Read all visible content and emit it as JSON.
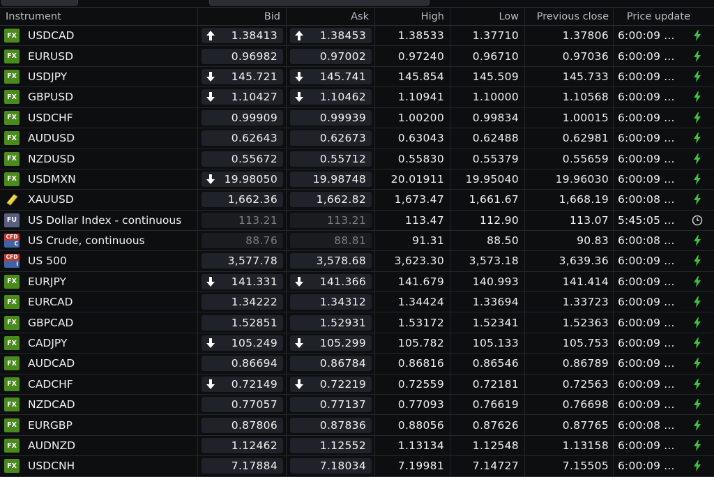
{
  "columns": {
    "instrument": "Instrument",
    "bid": "Bid",
    "ask": "Ask",
    "high": "High",
    "low": "Low",
    "prev_close": "Previous close",
    "price_update": "Price update"
  },
  "colors": {
    "live": "#3fbf3f",
    "clock": "#d0d0d0",
    "fx_badge": "#4b8a1d",
    "fu_badge": "#5a5f82",
    "cfd_badge": "#3d63a8"
  },
  "rows": [
    {
      "badge": "FX",
      "icon": "fx-badge-icon",
      "name": "USDCAD",
      "bid": "1.38413",
      "bid_dir": "up",
      "ask": "1.38453",
      "ask_dir": "up",
      "high": "1.38533",
      "low": "1.37710",
      "prev": "1.37806",
      "time": "6:00:09 ...",
      "status": "lightning-icon"
    },
    {
      "badge": "FX",
      "icon": "fx-badge-icon",
      "name": "EURUSD",
      "bid": "0.96982",
      "bid_dir": "",
      "ask": "0.97002",
      "ask_dir": "",
      "high": "0.97240",
      "low": "0.96710",
      "prev": "0.97036",
      "time": "6:00:09 ...",
      "status": "lightning-icon"
    },
    {
      "badge": "FX",
      "icon": "fx-badge-icon",
      "name": "USDJPY",
      "bid": "145.721",
      "bid_dir": "down",
      "ask": "145.741",
      "ask_dir": "down",
      "high": "145.854",
      "low": "145.509",
      "prev": "145.733",
      "time": "6:00:09 ...",
      "status": "lightning-icon"
    },
    {
      "badge": "FX",
      "icon": "fx-badge-icon",
      "name": "GBPUSD",
      "bid": "1.10427",
      "bid_dir": "down",
      "ask": "1.10462",
      "ask_dir": "down",
      "high": "1.10941",
      "low": "1.10000",
      "prev": "1.10568",
      "time": "6:00:09 ...",
      "status": "lightning-icon"
    },
    {
      "badge": "FX",
      "icon": "fx-badge-icon",
      "name": "USDCHF",
      "bid": "0.99909",
      "bid_dir": "",
      "ask": "0.99939",
      "ask_dir": "",
      "high": "1.00200",
      "low": "0.99834",
      "prev": "1.00015",
      "time": "6:00:09 ...",
      "status": "lightning-icon"
    },
    {
      "badge": "FX",
      "icon": "fx-badge-icon",
      "name": "AUDUSD",
      "bid": "0.62643",
      "bid_dir": "",
      "ask": "0.62673",
      "ask_dir": "",
      "high": "0.63043",
      "low": "0.62488",
      "prev": "0.62981",
      "time": "6:00:09 ...",
      "status": "lightning-icon"
    },
    {
      "badge": "FX",
      "icon": "fx-badge-icon",
      "name": "NZDUSD",
      "bid": "0.55672",
      "bid_dir": "",
      "ask": "0.55712",
      "ask_dir": "",
      "high": "0.55830",
      "low": "0.55379",
      "prev": "0.55659",
      "time": "6:00:09 ...",
      "status": "lightning-icon"
    },
    {
      "badge": "FX",
      "icon": "fx-badge-icon",
      "name": "USDMXN",
      "bid": "19.98050",
      "bid_dir": "down",
      "ask": "19.98748",
      "ask_dir": "",
      "high": "20.01911",
      "low": "19.95040",
      "prev": "19.96030",
      "time": "6:00:09 ...",
      "status": "lightning-icon"
    },
    {
      "badge": "",
      "icon": "gold-bar-icon",
      "name": "XAUUSD",
      "bid": "1,662.36",
      "bid_dir": "",
      "ask": "1,662.82",
      "ask_dir": "",
      "high": "1,673.47",
      "low": "1,661.67",
      "prev": "1,668.19",
      "time": "6:00:08 ...",
      "status": "lightning-icon"
    },
    {
      "badge": "FU",
      "icon": "fu-badge-icon",
      "name": "US Dollar Index - continuous",
      "bid": "113.21",
      "bid_dir": "",
      "ask": "113.21",
      "ask_dir": "",
      "high": "113.47",
      "low": "112.90",
      "prev": "113.07",
      "time": "5:45:05 ...",
      "status": "clock-icon",
      "dim": true
    },
    {
      "badge": "CFD",
      "icon": "cfd-commodity-badge-icon",
      "name": "US Crude, continuous",
      "bid": "88.76",
      "bid_dir": "",
      "ask": "88.81",
      "ask_dir": "",
      "high": "91.31",
      "low": "88.50",
      "prev": "90.83",
      "time": "6:00:08 ...",
      "status": "lightning-icon",
      "dim": true,
      "cfd_sub": "C"
    },
    {
      "badge": "CFD",
      "icon": "cfd-index-badge-icon",
      "name": "US 500",
      "bid": "3,577.78",
      "bid_dir": "",
      "ask": "3,578.68",
      "ask_dir": "",
      "high": "3,623.30",
      "low": "3,573.18",
      "prev": "3,639.36",
      "time": "6:00:09 ...",
      "status": "lightning-icon",
      "cfd_sub": "I"
    },
    {
      "badge": "FX",
      "icon": "fx-badge-icon",
      "name": "EURJPY",
      "bid": "141.331",
      "bid_dir": "down",
      "ask": "141.366",
      "ask_dir": "down",
      "high": "141.679",
      "low": "140.993",
      "prev": "141.414",
      "time": "6:00:09 ...",
      "status": "lightning-icon"
    },
    {
      "badge": "FX",
      "icon": "fx-badge-icon",
      "name": "EURCAD",
      "bid": "1.34222",
      "bid_dir": "",
      "ask": "1.34312",
      "ask_dir": "",
      "high": "1.34424",
      "low": "1.33694",
      "prev": "1.33723",
      "time": "6:00:09 ...",
      "status": "lightning-icon"
    },
    {
      "badge": "FX",
      "icon": "fx-badge-icon",
      "name": "GBPCAD",
      "bid": "1.52851",
      "bid_dir": "",
      "ask": "1.52931",
      "ask_dir": "",
      "high": "1.53172",
      "low": "1.52341",
      "prev": "1.52363",
      "time": "6:00:09 ...",
      "status": "lightning-icon"
    },
    {
      "badge": "FX",
      "icon": "fx-badge-icon",
      "name": "CADJPY",
      "bid": "105.249",
      "bid_dir": "down",
      "ask": "105.299",
      "ask_dir": "down",
      "high": "105.782",
      "low": "105.133",
      "prev": "105.753",
      "time": "6:00:09 ...",
      "status": "lightning-icon"
    },
    {
      "badge": "FX",
      "icon": "fx-badge-icon",
      "name": "AUDCAD",
      "bid": "0.86694",
      "bid_dir": "",
      "ask": "0.86784",
      "ask_dir": "",
      "high": "0.86816",
      "low": "0.86546",
      "prev": "0.86789",
      "time": "6:00:09 ...",
      "status": "lightning-icon"
    },
    {
      "badge": "FX",
      "icon": "fx-badge-icon",
      "name": "CADCHF",
      "bid": "0.72149",
      "bid_dir": "down",
      "ask": "0.72219",
      "ask_dir": "down",
      "high": "0.72559",
      "low": "0.72181",
      "prev": "0.72563",
      "time": "6:00:09 ...",
      "status": "lightning-icon"
    },
    {
      "badge": "FX",
      "icon": "fx-badge-icon",
      "name": "NZDCAD",
      "bid": "0.77057",
      "bid_dir": "",
      "ask": "0.77137",
      "ask_dir": "",
      "high": "0.77093",
      "low": "0.76619",
      "prev": "0.76698",
      "time": "6:00:09 ...",
      "status": "lightning-icon"
    },
    {
      "badge": "FX",
      "icon": "fx-badge-icon",
      "name": "EURGBP",
      "bid": "0.87806",
      "bid_dir": "",
      "ask": "0.87836",
      "ask_dir": "",
      "high": "0.88056",
      "low": "0.87626",
      "prev": "0.87765",
      "time": "6:00:08 ...",
      "status": "lightning-icon"
    },
    {
      "badge": "FX",
      "icon": "fx-badge-icon",
      "name": "AUDNZD",
      "bid": "1.12462",
      "bid_dir": "",
      "ask": "1.12552",
      "ask_dir": "",
      "high": "1.13134",
      "low": "1.12548",
      "prev": "1.13158",
      "time": "6:00:09 ...",
      "status": "lightning-icon"
    },
    {
      "badge": "FX",
      "icon": "fx-badge-icon",
      "name": "USDCNH",
      "bid": "7.17884",
      "bid_dir": "",
      "ask": "7.18034",
      "ask_dir": "",
      "high": "7.19981",
      "low": "7.14727",
      "prev": "7.15505",
      "time": "6:00:09 ...",
      "status": "lightning-icon"
    }
  ]
}
